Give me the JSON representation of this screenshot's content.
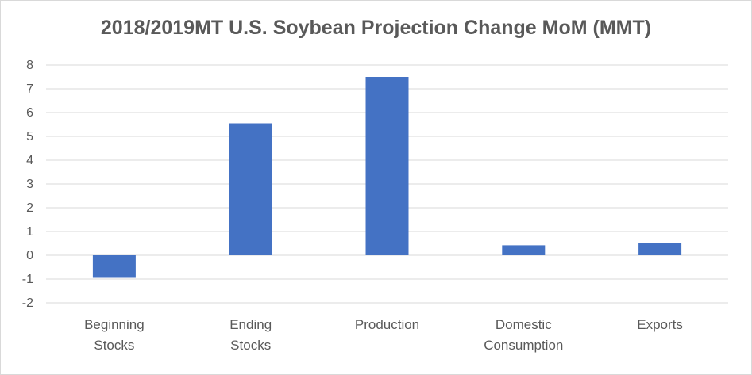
{
  "chart_data": {
    "type": "bar",
    "title": "2018/2019MT U.S. Soybean Projection Change MoM (MMT)",
    "categories": [
      [
        "Beginning",
        "Stocks"
      ],
      [
        "Ending",
        "Stocks"
      ],
      [
        "Production"
      ],
      [
        "Domestic",
        "Consumption"
      ],
      [
        "Exports"
      ]
    ],
    "values": [
      -0.95,
      5.55,
      7.5,
      0.42,
      0.52
    ],
    "ylim": [
      -2,
      8
    ],
    "yticks": [
      -2,
      -1,
      0,
      1,
      2,
      3,
      4,
      5,
      6,
      7,
      8
    ],
    "xlabel": "",
    "ylabel": "",
    "grid": true,
    "legend": "none",
    "colors": {
      "bar": "#4472c4",
      "grid": "#d9d9d9",
      "text": "#595959"
    }
  }
}
